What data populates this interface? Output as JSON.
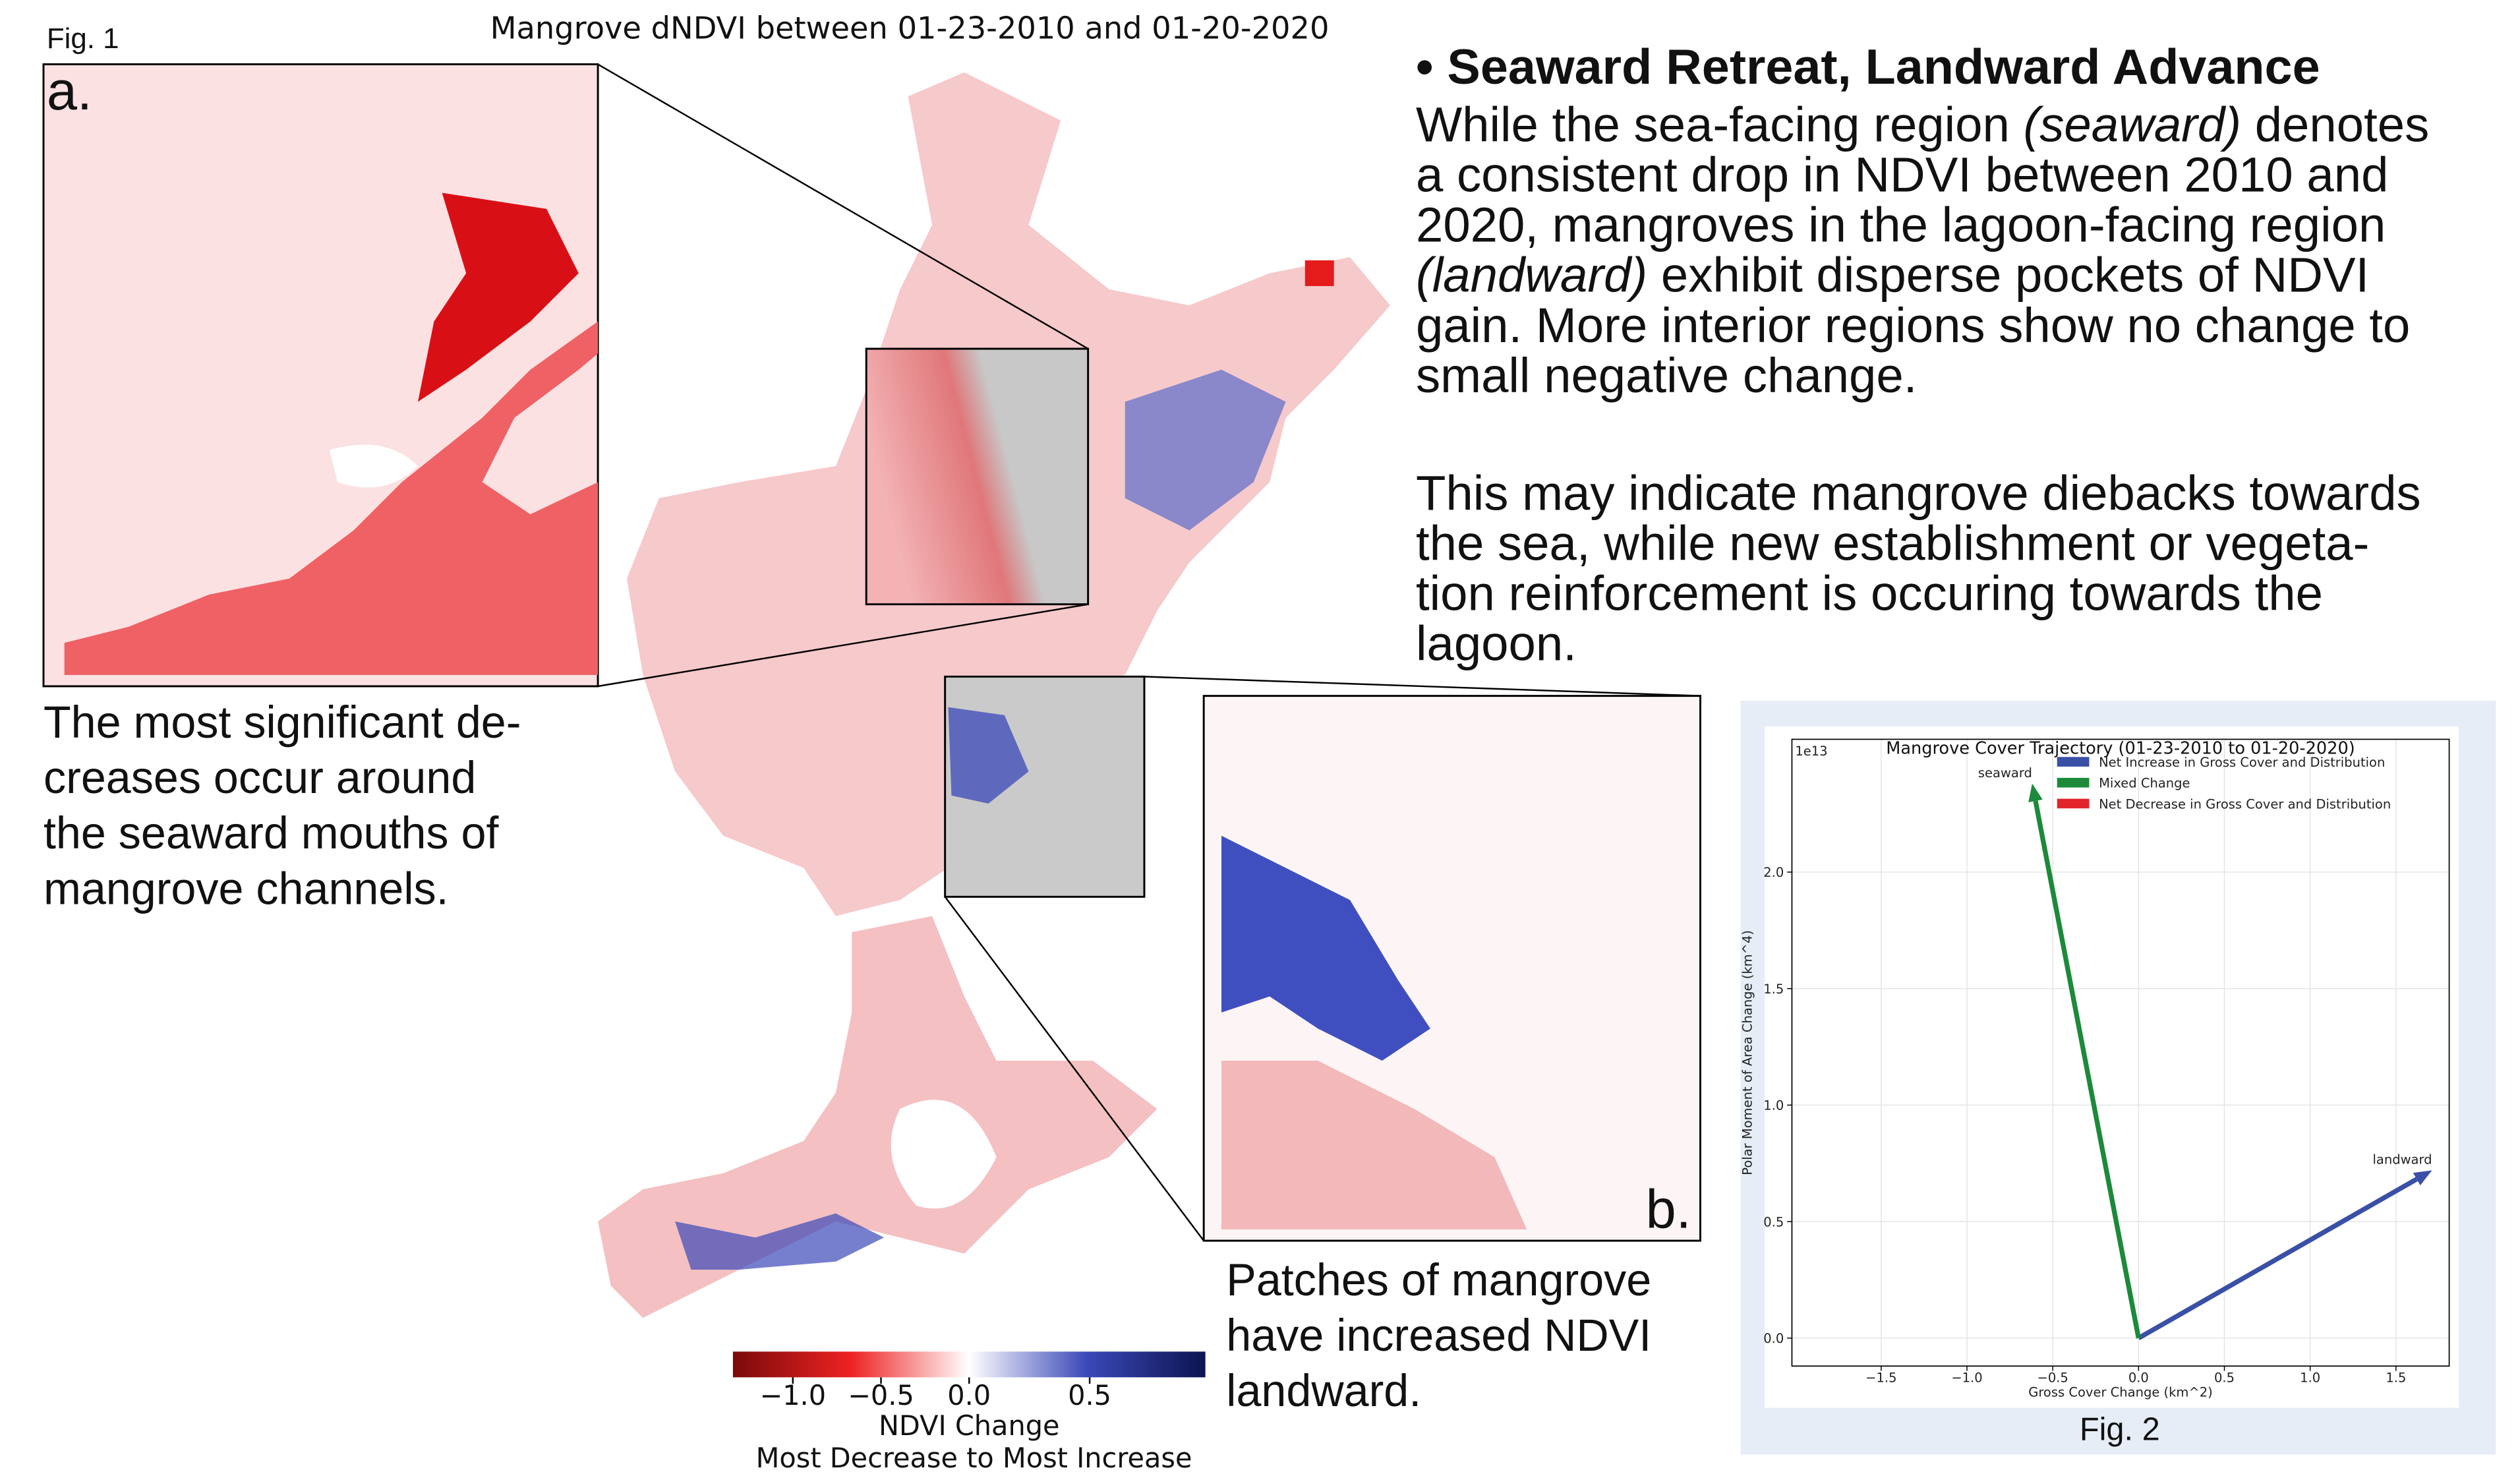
{
  "fig1": {
    "label": "Fig. 1",
    "title": "Mangrove dNDVI between 01-23-2010 and 01-20-2020",
    "inset_a_label": "a.",
    "inset_b_label": "b.",
    "caption_a": [
      "The most significant de-",
      "creases occur around",
      "the seaward mouths of",
      "mangrove channels."
    ],
    "caption_b": [
      "Patches of mangrove",
      "have increased NDVI",
      "landward."
    ],
    "colorbar": {
      "label": "NDVI Change",
      "sublabel": "Most Decrease to Most Increase",
      "clim": [
        -1.34,
        0.98
      ],
      "center": 0,
      "colors": [
        "#7a0a0a",
        "#ee2222",
        "#ffffff",
        "#3a48b8",
        "#0c1450"
      ],
      "ticks": [
        {
          "value": -1,
          "label": "−1.0"
        },
        {
          "value": -0.5,
          "label": "−0.5"
        },
        {
          "value": 0,
          "label": "0.0"
        },
        {
          "value": 0.5,
          "label": "0.5"
        }
      ]
    }
  },
  "text": {
    "heading": "• Seaward Retreat, Landward Advance",
    "paragraphs": [
      [
        [
          "While the sea-facing region ",
          {
            "text": "(seaward)",
            "style": "italic"
          },
          " denotes"
        ],
        [
          "a consistent drop in NDVI between 2010 and"
        ],
        [
          "2020, mangroves in the lagoon-facing region"
        ],
        [
          {
            "text": "(landward)",
            "style": "italic"
          },
          " exhibit disperse pockets of NDVI"
        ],
        [
          "gain. More interior regions show no change to"
        ],
        [
          "small negative change."
        ]
      ],
      [
        [
          "This may indicate mangrove diebacks towards"
        ],
        [
          "the sea, while new establishment or vegeta-"
        ],
        [
          "tion reinforcement is occuring towards the"
        ],
        [
          "lagoon."
        ]
      ]
    ]
  },
  "chart_data": {
    "type": "quiver",
    "title": "Mangrove Cover Trajectory (01-23-2010 to 01-20-2020)",
    "figure_label": "Fig. 2",
    "xlabel": "Gross Cover Change (km^2)",
    "ylabel": "Polar Moment of Area Change (km^4)",
    "y_offset_label": "1e13",
    "xlim": [
      -2.02,
      1.81
    ],
    "ylim": [
      -0.12,
      2.57
    ],
    "grid": true,
    "legend": "upper right",
    "xticks": [
      {
        "value": -1.5,
        "label": "−1.5"
      },
      {
        "value": -1,
        "label": "−1.0"
      },
      {
        "value": -0.5,
        "label": "−0.5"
      },
      {
        "value": 0,
        "label": "0.0"
      },
      {
        "value": 0.5,
        "label": "0.5"
      },
      {
        "value": 1,
        "label": "1.0"
      },
      {
        "value": 1.5,
        "label": "1.5"
      }
    ],
    "yticks": [
      {
        "value": 0,
        "label": "0.0"
      },
      {
        "value": 0.5,
        "label": "0.5"
      },
      {
        "value": 1,
        "label": "1.0"
      },
      {
        "value": 1.5,
        "label": "1.5"
      },
      {
        "value": 2,
        "label": "2.0"
      }
    ],
    "series": [
      {
        "name": "Net Increase in Gross Cover and Distribution",
        "color": "#3a4fa6",
        "x": [
          1.71
        ],
        "values": [
          0.72
        ],
        "point_labels": [
          "landward"
        ]
      },
      {
        "name": "Mixed Change",
        "color": "#1c8a3a",
        "x": [
          -0.62
        ],
        "values": [
          2.38
        ],
        "point_labels": [
          "seaward"
        ]
      },
      {
        "name": "Net Decrease in Gross Cover and Distribution",
        "color": "#e2252b",
        "x": [],
        "values": [],
        "point_labels": []
      }
    ]
  }
}
